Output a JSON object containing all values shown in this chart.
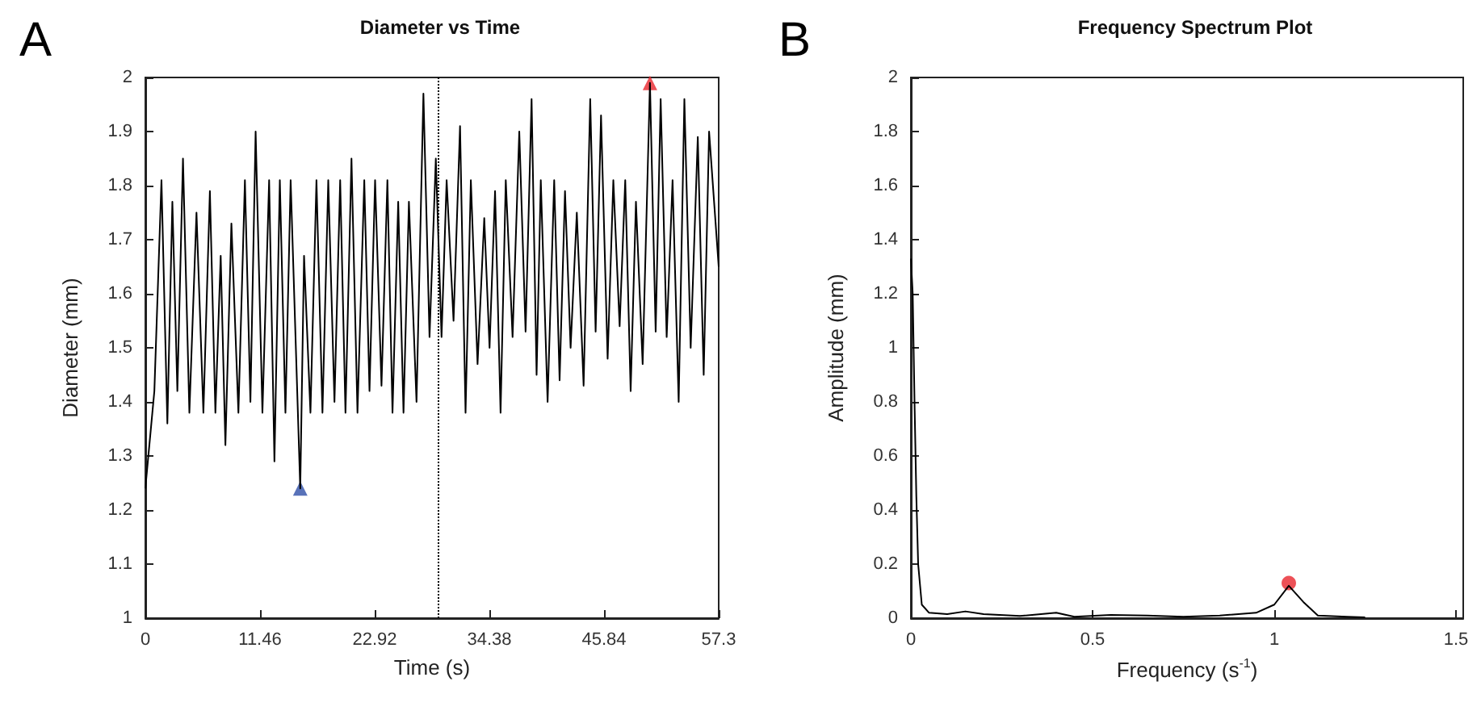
{
  "chart_data": [
    {
      "type": "line",
      "title": "Diameter vs Time",
      "xlabel": "Time (s)",
      "ylabel": "Diameter (mm)",
      "annotations": [
        "A"
      ],
      "xlim": [
        0,
        57.3
      ],
      "xticks": [
        0,
        11.46,
        22.92,
        34.38,
        45.84,
        57.3
      ],
      "ylim": [
        1,
        2
      ],
      "yticks": [
        1,
        1.1,
        1.2,
        1.3,
        1.4,
        1.5,
        1.6,
        1.7,
        1.8,
        1.9,
        2
      ],
      "grid": false,
      "marker": "none",
      "ref_lines": [
        {
          "axis": "x",
          "value": 29.2,
          "line_style": "dotted",
          "color": "#000000"
        }
      ],
      "series": [
        {
          "type": "line",
          "color": "#000000",
          "x": [
            0,
            0.9,
            1.61,
            2.2,
            2.7,
            3.2,
            3.76,
            4.4,
            5.11,
            5.8,
            6.45,
            7.0,
            7.53,
            8.0,
            8.6,
            9.3,
            9.95,
            10.5,
            11.02,
            11.7,
            12.37,
            12.9,
            13.44,
            14.0,
            14.52,
            15.48,
            15.86,
            16.5,
            17.1,
            17.7,
            18.28,
            18.9,
            19.47,
            20.0,
            20.6,
            21.2,
            21.88,
            22.4,
            22.96,
            23.6,
            24.19,
            24.7,
            25.27,
            25.8,
            26.34,
            27.1,
            27.79,
            28.4,
            29.03,
            29.6,
            30.11,
            30.8,
            31.45,
            32.0,
            32.53,
            33.2,
            33.87,
            34.4,
            34.95,
            35.5,
            36.02,
            36.7,
            37.37,
            38.0,
            38.6,
            39.1,
            39.52,
            40.2,
            40.86,
            41.4,
            41.94,
            42.5,
            43.12,
            43.8,
            44.46,
            45.0,
            45.54,
            46.2,
            46.77,
            47.4,
            47.96,
            48.5,
            49.03,
            49.7,
            50.43,
            51.0,
            51.5,
            52.1,
            52.69,
            53.3,
            53.87,
            54.5,
            55.21,
            55.8,
            56.34,
            57.3
          ],
          "values": [
            1.24,
            1.42,
            1.81,
            1.36,
            1.77,
            1.42,
            1.85,
            1.38,
            1.75,
            1.38,
            1.79,
            1.38,
            1.67,
            1.32,
            1.73,
            1.38,
            1.81,
            1.4,
            1.9,
            1.38,
            1.81,
            1.29,
            1.81,
            1.38,
            1.81,
            1.24,
            1.67,
            1.38,
            1.81,
            1.38,
            1.81,
            1.4,
            1.81,
            1.38,
            1.85,
            1.38,
            1.81,
            1.42,
            1.81,
            1.43,
            1.81,
            1.38,
            1.77,
            1.38,
            1.77,
            1.4,
            1.97,
            1.52,
            1.85,
            1.52,
            1.81,
            1.55,
            1.91,
            1.38,
            1.81,
            1.47,
            1.74,
            1.5,
            1.79,
            1.38,
            1.81,
            1.52,
            1.9,
            1.53,
            1.96,
            1.45,
            1.81,
            1.4,
            1.81,
            1.44,
            1.79,
            1.5,
            1.75,
            1.43,
            1.96,
            1.53,
            1.93,
            1.48,
            1.81,
            1.54,
            1.81,
            1.42,
            1.77,
            1.47,
            1.99,
            1.53,
            1.96,
            1.52,
            1.81,
            1.4,
            1.96,
            1.5,
            1.89,
            1.45,
            1.9,
            1.65
          ]
        },
        {
          "type": "scatter",
          "color": "#2e4fa8",
          "marker": "triangle",
          "x": [
            15.48
          ],
          "values": [
            1.24
          ]
        },
        {
          "type": "scatter",
          "color": "#e8262d",
          "marker": "triangle",
          "x": [
            50.43
          ],
          "values": [
            1.99
          ]
        }
      ]
    },
    {
      "type": "line",
      "title": "Frequency Spectrum Plot",
      "xlabel": "Frequency (s$^{-1}$)",
      "ylabel": "Amplitude (mm)",
      "annotations": [
        "B"
      ],
      "xlim": [
        0,
        1.52
      ],
      "xticks": [
        0,
        0.5,
        1,
        1.5
      ],
      "ylim": [
        0,
        2
      ],
      "yticks": [
        0,
        0.2,
        0.4,
        0.6,
        0.8,
        1,
        1.2,
        1.4,
        1.6,
        1.8,
        2
      ],
      "grid": false,
      "marker": "none",
      "series": [
        {
          "type": "line",
          "color": "#000000",
          "x": [
            0,
            0.005,
            0.01,
            0.015,
            0.02,
            0.03,
            0.05,
            0.1,
            0.15,
            0.2,
            0.3,
            0.4,
            0.45,
            0.55,
            0.65,
            0.75,
            0.85,
            0.95,
            1.0,
            1.04,
            1.08,
            1.12,
            1.2,
            1.25
          ],
          "values": [
            1.33,
            1.2,
            0.8,
            0.45,
            0.2,
            0.05,
            0.02,
            0.015,
            0.025,
            0.015,
            0.008,
            0.02,
            0.005,
            0.012,
            0.01,
            0.005,
            0.01,
            0.02,
            0.05,
            0.12,
            0.06,
            0.01,
            0.005,
            0.003
          ]
        },
        {
          "type": "scatter",
          "color": "#e8262d",
          "marker": "circle",
          "x": [
            1.04
          ],
          "values": [
            0.13
          ]
        }
      ]
    }
  ]
}
